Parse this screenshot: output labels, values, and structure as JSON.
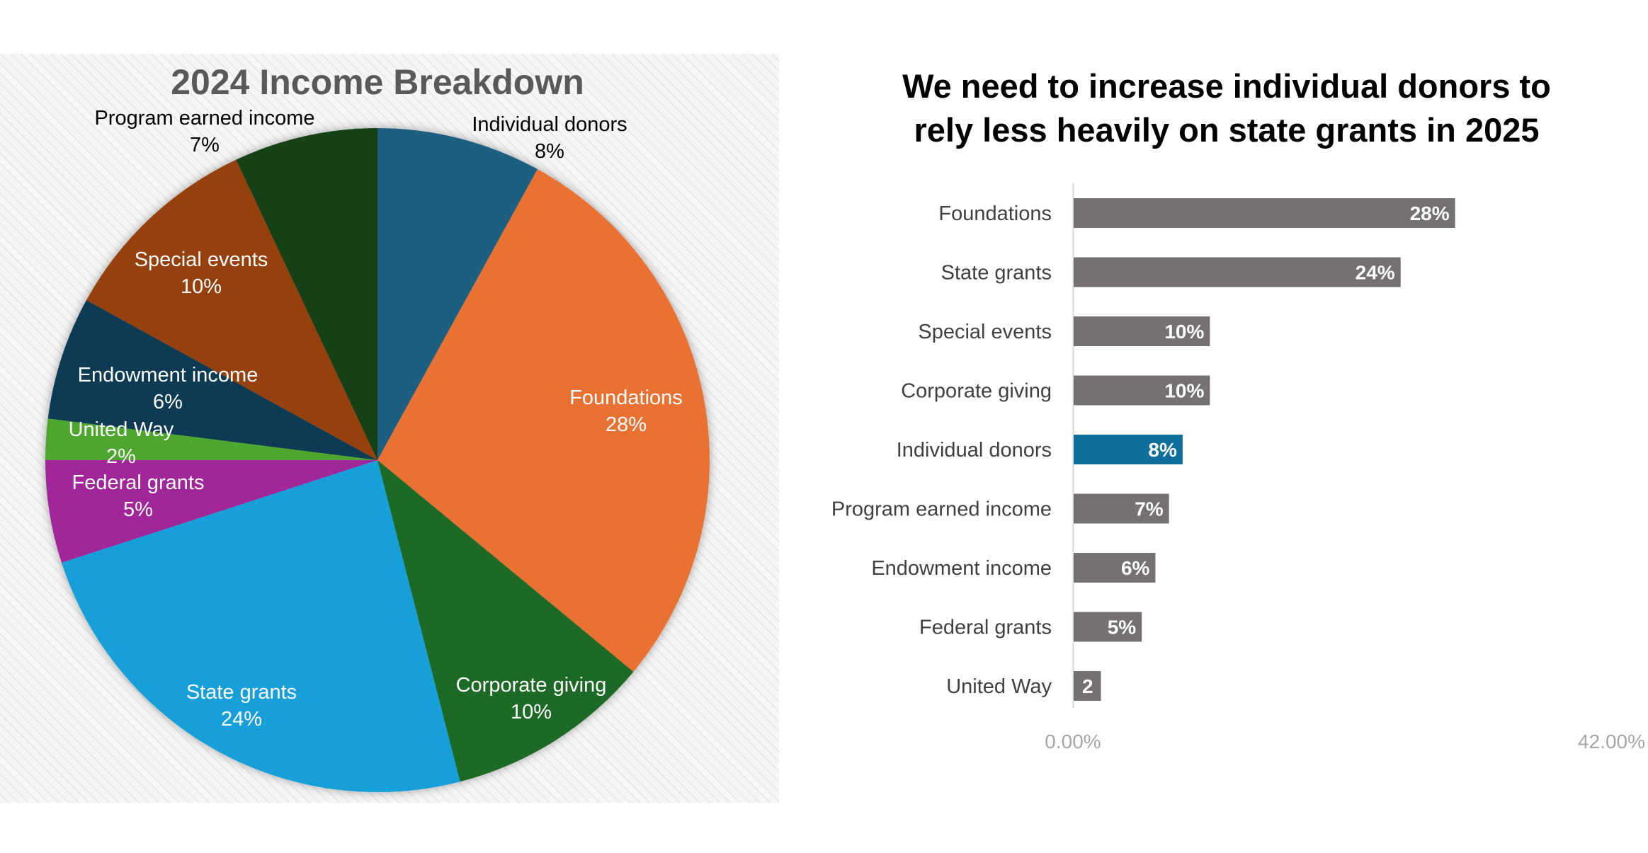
{
  "pie_chart": {
    "title": "2024 Income Breakdown"
  },
  "bar_chart": {
    "title_line1": "We need to increase individual donors to",
    "title_line2": "rely less heavily on state grants in 2025",
    "xaxis_min_label": "0.00%",
    "xaxis_max_label": "42.00%"
  },
  "chart_data": [
    {
      "type": "pie",
      "title": "2024 Income Breakdown",
      "slices": [
        {
          "label": "Individual donors",
          "value": 8,
          "value_label": "8%",
          "color": "#1b5e80"
        },
        {
          "label": "Foundations",
          "value": 28,
          "value_label": "28%",
          "color": "#e97132"
        },
        {
          "label": "Corporate giving",
          "value": 10,
          "value_label": "10%",
          "color": "#1e6b25"
        },
        {
          "label": "State grants",
          "value": 24,
          "value_label": "24%",
          "color": "#159fd9"
        },
        {
          "label": "Federal grants",
          "value": 5,
          "value_label": "5%",
          "color": "#a0279a"
        },
        {
          "label": "United Way",
          "value": 2,
          "value_label": "2%",
          "color": "#4ea72e"
        },
        {
          "label": "Endowment income",
          "value": 6,
          "value_label": "6%",
          "color": "#0e3a52"
        },
        {
          "label": "Special events",
          "value": 10,
          "value_label": "10%",
          "color": "#95410f"
        },
        {
          "label": "Program earned income",
          "value": 7,
          "value_label": "7%",
          "color": "#124118"
        }
      ]
    },
    {
      "type": "bar",
      "orientation": "horizontal",
      "title": "We need to increase individual donors to rely less heavily on state grants in 2025",
      "xlim": [
        0,
        42
      ],
      "default_color": "#767171",
      "highlight_color": "#0e6f9d",
      "categories": [
        "Foundations",
        "State grants",
        "Special events",
        "Corporate giving",
        "Individual donors",
        "Program earned income",
        "Endowment income",
        "Federal grants",
        "United Way"
      ],
      "values": [
        28,
        24,
        10,
        10,
        8,
        7,
        6,
        5,
        2
      ],
      "value_labels": [
        "28%",
        "24%",
        "10%",
        "10%",
        "8%",
        "7%",
        "6%",
        "5%",
        "2"
      ],
      "highlight": "Individual donors"
    }
  ]
}
